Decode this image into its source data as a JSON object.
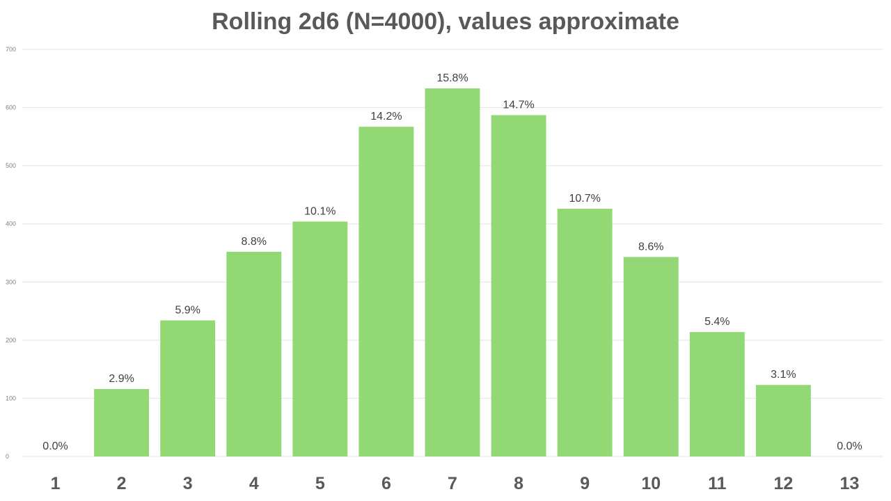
{
  "chart_data": {
    "type": "bar",
    "title": "Rolling 2d6 (N=4000), values approximate",
    "xlabel": "",
    "ylabel": "",
    "categories": [
      "1",
      "2",
      "3",
      "4",
      "5",
      "6",
      "7",
      "8",
      "9",
      "10",
      "11",
      "12",
      "13"
    ],
    "values": [
      0,
      116,
      234,
      352,
      404,
      567,
      633,
      587,
      426,
      343,
      214,
      123,
      0
    ],
    "data_labels": [
      "0.0%",
      "2.9%",
      "5.9%",
      "8.8%",
      "10.1%",
      "14.2%",
      "15.8%",
      "14.7%",
      "10.7%",
      "8.6%",
      "5.4%",
      "3.1%",
      "0.0%"
    ],
    "ylim": [
      0,
      700
    ],
    "yticks": [
      0,
      100,
      200,
      300,
      400,
      500,
      600,
      700
    ],
    "grid": true,
    "legend": "none",
    "bar_color": "#92d975"
  }
}
